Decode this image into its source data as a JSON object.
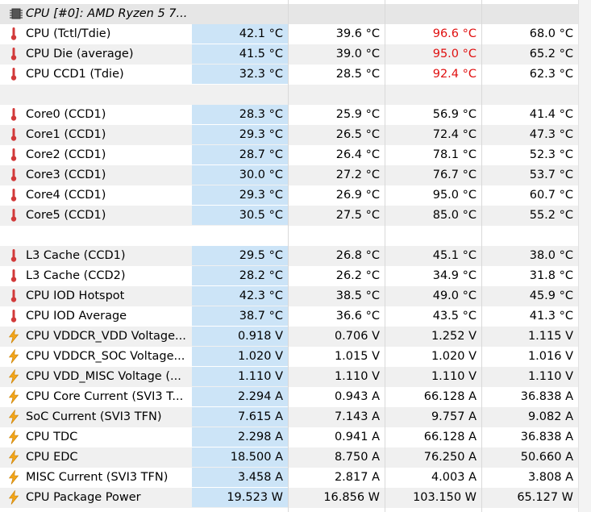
{
  "header": {
    "title": "CPU [#0]: AMD Ryzen 5 7...",
    "icon": "chip-icon"
  },
  "rows": [
    {
      "type": "sensor",
      "icon": "thermometer",
      "label": "CPU (Tctl/Tdie)",
      "current": "42.1 °C",
      "min": "39.6 °C",
      "max": "96.6 °C",
      "avg": "68.0 °C",
      "max_red": true
    },
    {
      "type": "sensor",
      "icon": "thermometer",
      "label": "CPU Die (average)",
      "current": "41.5 °C",
      "min": "39.0 °C",
      "max": "95.0 °C",
      "avg": "65.2 °C",
      "max_red": true
    },
    {
      "type": "sensor",
      "icon": "thermometer",
      "label": "CPU CCD1 (Tdie)",
      "current": "32.3 °C",
      "min": "28.5 °C",
      "max": "92.4 °C",
      "avg": "62.3 °C",
      "max_red": true
    },
    {
      "type": "blank"
    },
    {
      "type": "sensor",
      "icon": "thermometer",
      "label": "Core0 (CCD1)",
      "current": "28.3 °C",
      "min": "25.9 °C",
      "max": "56.9 °C",
      "avg": "41.4 °C"
    },
    {
      "type": "sensor",
      "icon": "thermometer",
      "label": "Core1 (CCD1)",
      "current": "29.3 °C",
      "min": "26.5 °C",
      "max": "72.4 °C",
      "avg": "47.3 °C"
    },
    {
      "type": "sensor",
      "icon": "thermometer",
      "label": "Core2 (CCD1)",
      "current": "28.7 °C",
      "min": "26.4 °C",
      "max": "78.1 °C",
      "avg": "52.3 °C"
    },
    {
      "type": "sensor",
      "icon": "thermometer",
      "label": "Core3 (CCD1)",
      "current": "30.0 °C",
      "min": "27.2 °C",
      "max": "76.7 °C",
      "avg": "53.7 °C"
    },
    {
      "type": "sensor",
      "icon": "thermometer",
      "label": "Core4 (CCD1)",
      "current": "29.3 °C",
      "min": "26.9 °C",
      "max": "95.0 °C",
      "avg": "60.7 °C"
    },
    {
      "type": "sensor",
      "icon": "thermometer",
      "label": "Core5 (CCD1)",
      "current": "30.5 °C",
      "min": "27.5 °C",
      "max": "85.0 °C",
      "avg": "55.2 °C"
    },
    {
      "type": "blank"
    },
    {
      "type": "sensor",
      "icon": "thermometer",
      "label": "L3 Cache (CCD1)",
      "current": "29.5 °C",
      "min": "26.8 °C",
      "max": "45.1 °C",
      "avg": "38.0 °C"
    },
    {
      "type": "sensor",
      "icon": "thermometer",
      "label": "L3 Cache (CCD2)",
      "current": "28.2 °C",
      "min": "26.2 °C",
      "max": "34.9 °C",
      "avg": "31.8 °C"
    },
    {
      "type": "sensor",
      "icon": "thermometer",
      "label": "CPU IOD Hotspot",
      "current": "42.3 °C",
      "min": "38.5 °C",
      "max": "49.0 °C",
      "avg": "45.9 °C"
    },
    {
      "type": "sensor",
      "icon": "thermometer",
      "label": "CPU IOD Average",
      "current": "38.7 °C",
      "min": "36.6 °C",
      "max": "43.5 °C",
      "avg": "41.3 °C"
    },
    {
      "type": "sensor",
      "icon": "bolt",
      "label": "CPU VDDCR_VDD Voltage...",
      "current": "0.918 V",
      "min": "0.706 V",
      "max": "1.252 V",
      "avg": "1.115 V"
    },
    {
      "type": "sensor",
      "icon": "bolt",
      "label": "CPU VDDCR_SOC Voltage...",
      "current": "1.020 V",
      "min": "1.015 V",
      "max": "1.020 V",
      "avg": "1.016 V"
    },
    {
      "type": "sensor",
      "icon": "bolt",
      "label": "CPU VDD_MISC Voltage (...",
      "current": "1.110 V",
      "min": "1.110 V",
      "max": "1.110 V",
      "avg": "1.110 V"
    },
    {
      "type": "sensor",
      "icon": "bolt",
      "label": "CPU Core Current (SVI3 T...",
      "current": "2.294 A",
      "min": "0.943 A",
      "max": "66.128 A",
      "avg": "36.838 A"
    },
    {
      "type": "sensor",
      "icon": "bolt",
      "label": "SoC Current (SVI3 TFN)",
      "current": "7.615 A",
      "min": "7.143 A",
      "max": "9.757 A",
      "avg": "9.082 A"
    },
    {
      "type": "sensor",
      "icon": "bolt",
      "label": "CPU TDC",
      "current": "2.298 A",
      "min": "0.941 A",
      "max": "66.128 A",
      "avg": "36.838 A"
    },
    {
      "type": "sensor",
      "icon": "bolt",
      "label": "CPU EDC",
      "current": "18.500 A",
      "min": "8.750 A",
      "max": "76.250 A",
      "avg": "50.660 A"
    },
    {
      "type": "sensor",
      "icon": "bolt",
      "label": "MISC Current (SVI3 TFN)",
      "current": "3.458 A",
      "min": "2.817 A",
      "max": "4.003 A",
      "avg": "3.808 A"
    },
    {
      "type": "sensor",
      "icon": "bolt",
      "label": "CPU Package Power",
      "current": "19.523 W",
      "min": "16.856 W",
      "max": "103.150 W",
      "avg": "65.127 W"
    }
  ],
  "colors": {
    "current_bg": "#cce4f7",
    "alarm": "#e01010",
    "thermometer": "#d23a3a",
    "bolt": "#f2a51a"
  }
}
